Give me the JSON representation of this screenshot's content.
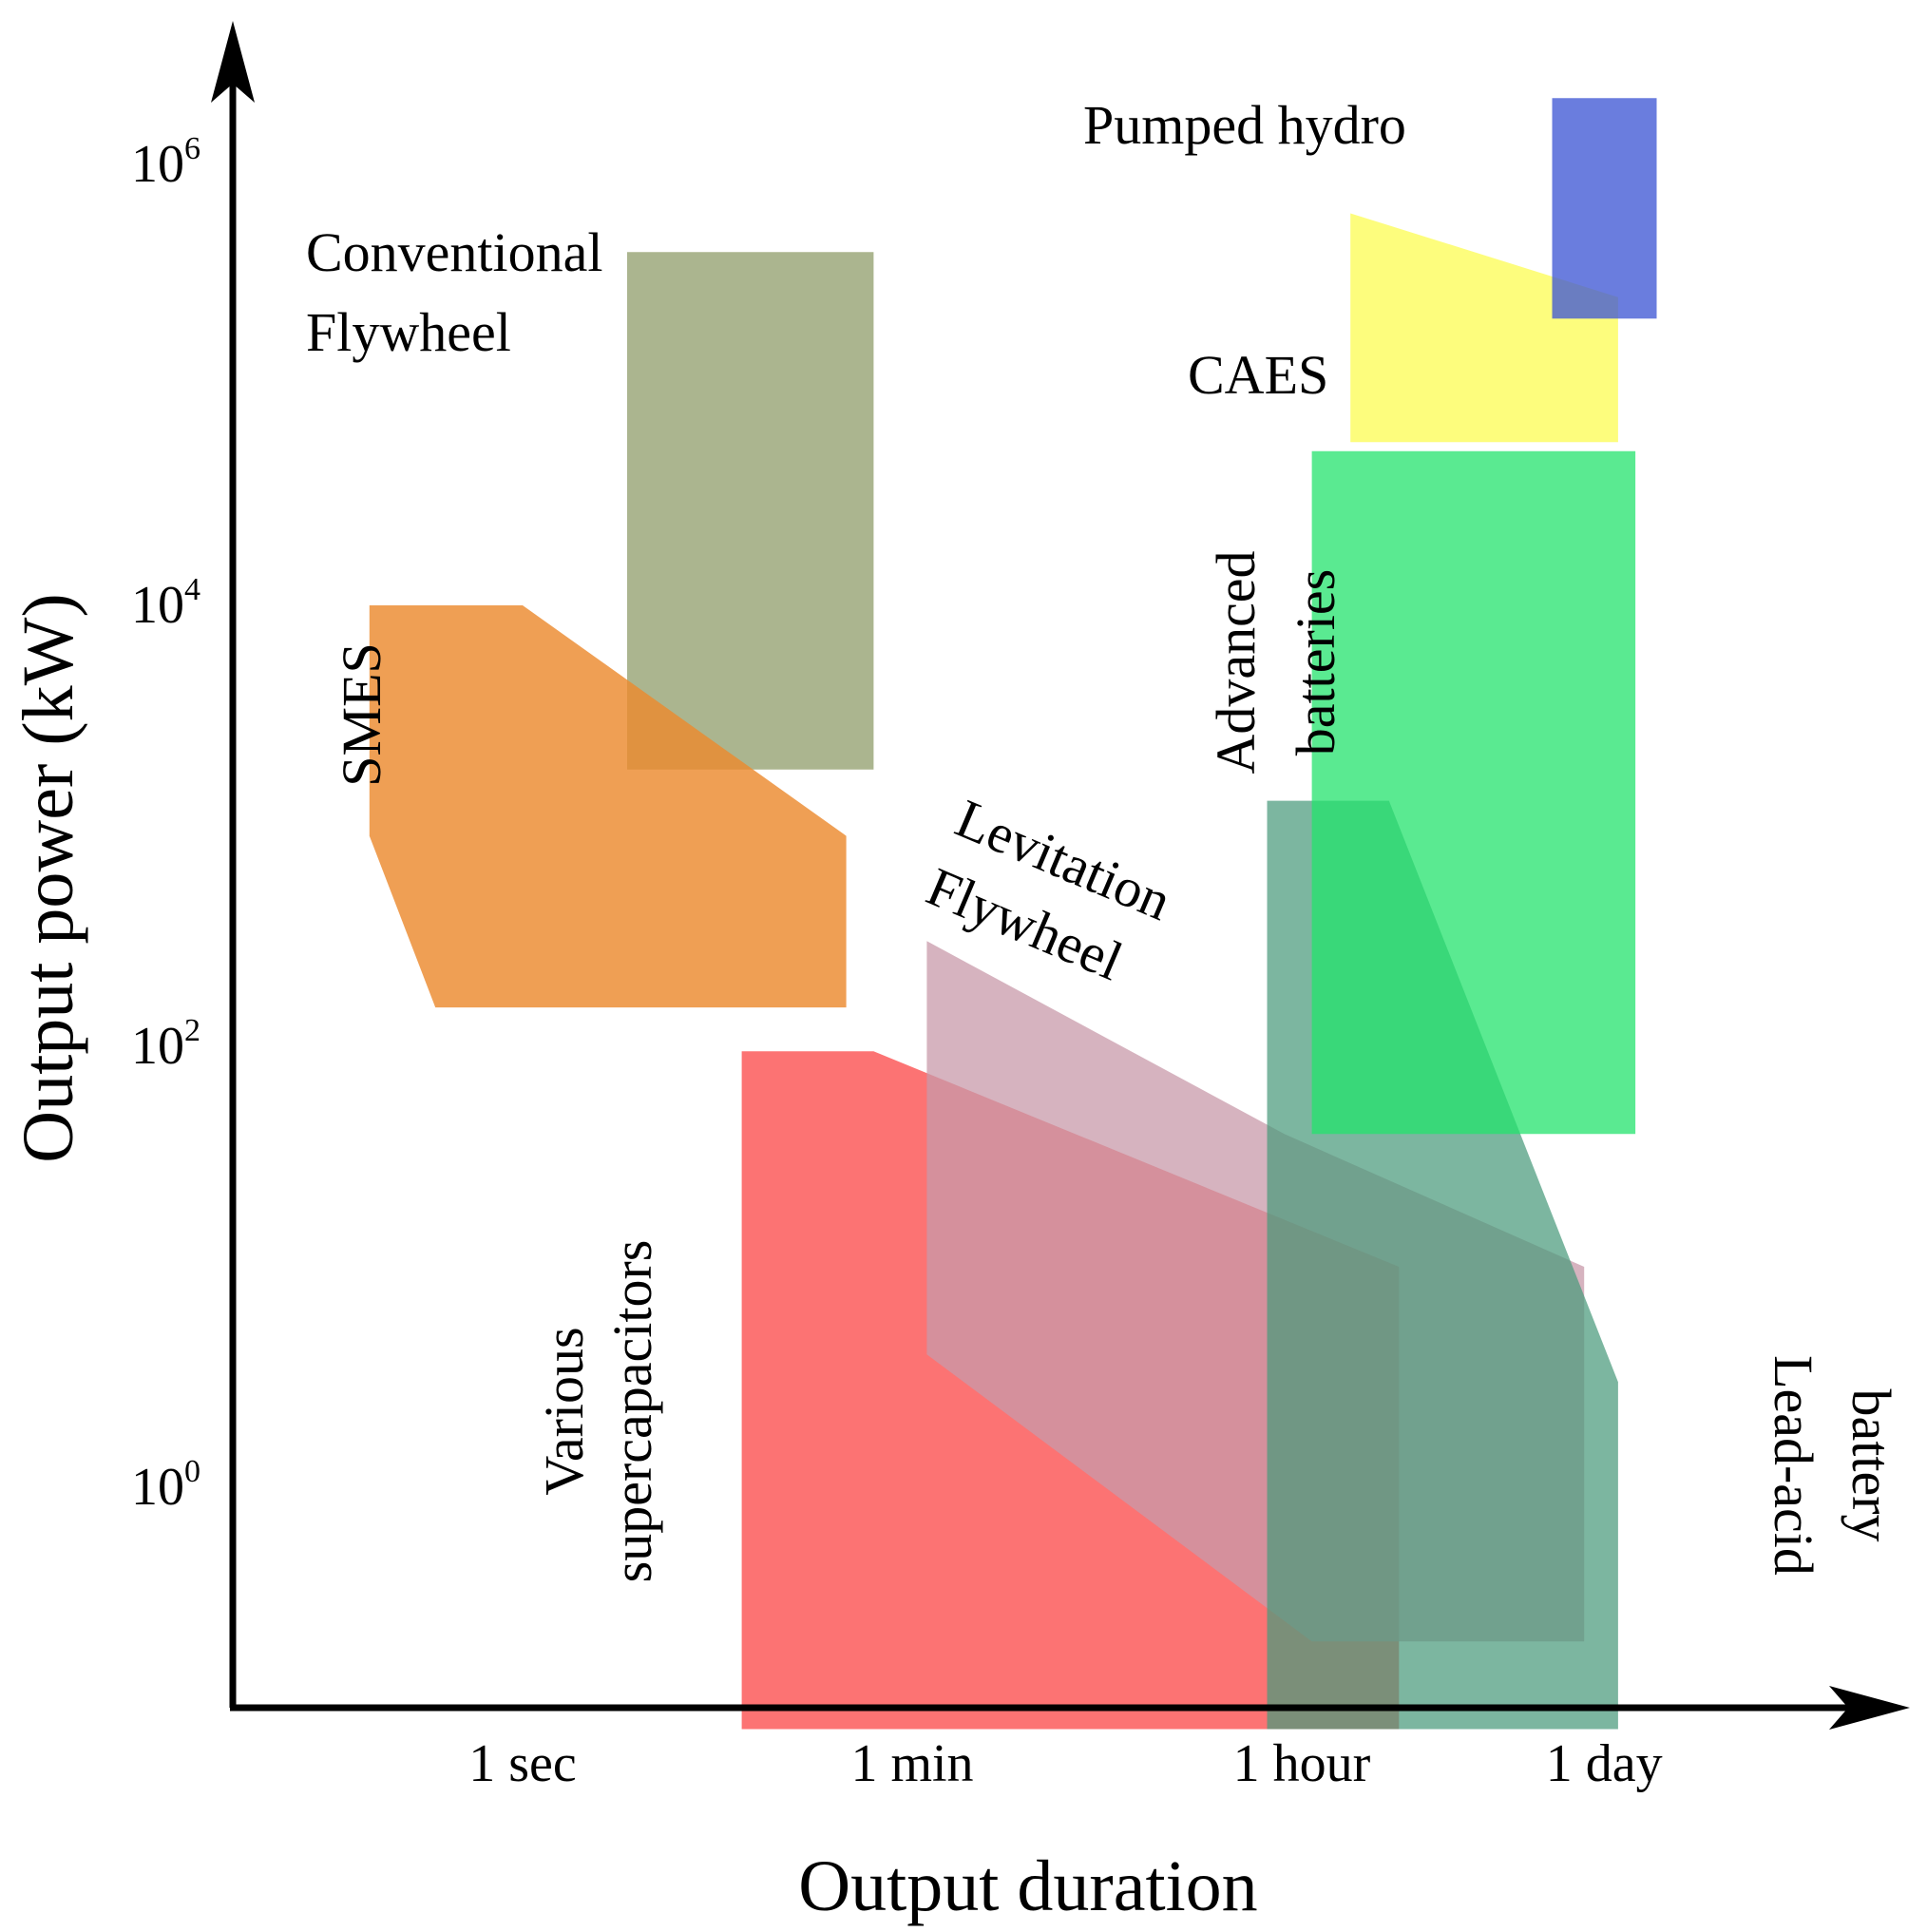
{
  "chart_data": {
    "type": "area",
    "xlabel": "Output duration",
    "ylabel": "Output power (kW)",
    "x_scale": "log",
    "y_scale": "log",
    "x_ticks": [
      {
        "label": "1 sec",
        "seconds": 1
      },
      {
        "label": "1 min",
        "seconds": 60
      },
      {
        "label": "1 hour",
        "seconds": 3600
      },
      {
        "label": "1 day",
        "seconds": 86400
      }
    ],
    "y_ticks": [
      {
        "base": "10",
        "exp": "0",
        "kw": 1
      },
      {
        "base": "10",
        "exp": "2",
        "kw": 100
      },
      {
        "base": "10",
        "exp": "4",
        "kw": 10000
      },
      {
        "base": "10",
        "exp": "6",
        "kw": 1000000
      }
    ],
    "series": [
      {
        "name": "Conventional Flywheel",
        "label_lines": [
          "Conventional",
          "Flywheel"
        ],
        "color": "#8f9c6a",
        "opacity": 0.75,
        "points": [
          [
            3,
            400000
          ],
          [
            40,
            400000
          ],
          [
            40,
            1800
          ],
          [
            3,
            1800
          ]
        ]
      },
      {
        "name": "SMES",
        "label_lines": [
          "SMES"
        ],
        "color": "#ec8a2e",
        "opacity": 0.82,
        "points": [
          [
            0.2,
            10000
          ],
          [
            1,
            10000
          ],
          [
            30,
            900
          ],
          [
            30,
            150
          ],
          [
            0.4,
            150
          ],
          [
            0.2,
            900
          ]
        ]
      },
      {
        "name": "Various supercapacitors",
        "label_lines": [
          "Various",
          "supercapacitors"
        ],
        "color": "#fb5050",
        "opacity": 0.8,
        "points": [
          [
            10,
            95
          ],
          [
            40,
            95
          ],
          [
            10000,
            10
          ],
          [
            10000,
            0.08
          ],
          [
            10,
            0.08
          ]
        ]
      },
      {
        "name": "Levitation Flywheel",
        "label_lines": [
          "Levitation",
          "Flywheel"
        ],
        "color": "#c899aa",
        "opacity": 0.75,
        "points": [
          [
            70,
            300
          ],
          [
            3000,
            40
          ],
          [
            70000,
            10
          ],
          [
            70000,
            0.2
          ],
          [
            4000,
            0.2
          ],
          [
            70,
            4
          ]
        ]
      },
      {
        "name": "Lead-acid battery",
        "label_lines": [
          "Lead-acid",
          "battery"
        ],
        "color": "#4a9a7c",
        "opacity": 0.72,
        "points": [
          [
            2500,
            1300
          ],
          [
            9000,
            1300
          ],
          [
            100000,
            3
          ],
          [
            100000,
            0.08
          ],
          [
            2500,
            0.08
          ]
        ]
      },
      {
        "name": "Advanced batteries",
        "label_lines": [
          "Advanced",
          "batteries"
        ],
        "color": "#23e36c",
        "opacity": 0.75,
        "points": [
          [
            4000,
            50000
          ],
          [
            120000,
            50000
          ],
          [
            120000,
            40
          ],
          [
            4000,
            40
          ]
        ]
      },
      {
        "name": "CAES",
        "label_lines": [
          "CAES"
        ],
        "color": "#fcfc60",
        "opacity": 0.82,
        "points": [
          [
            6000,
            600000
          ],
          [
            100000,
            250000
          ],
          [
            100000,
            55000
          ],
          [
            6000,
            55000
          ]
        ]
      },
      {
        "name": "Pumped hydro",
        "label_lines": [
          "Pumped hydro"
        ],
        "color": "#4058d5",
        "opacity": 0.78,
        "points": [
          [
            50000,
            2000000
          ],
          [
            150000,
            2000000
          ],
          [
            150000,
            200000
          ],
          [
            50000,
            200000
          ]
        ]
      }
    ]
  }
}
